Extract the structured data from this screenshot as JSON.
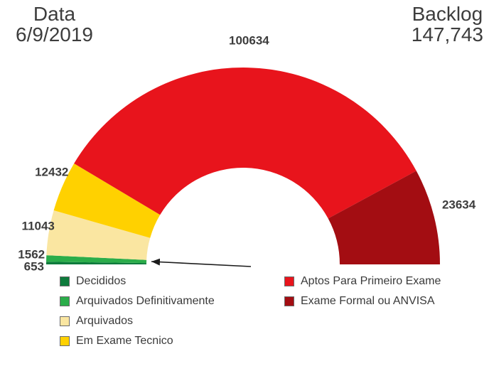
{
  "header": {
    "date_label": "Data",
    "date_value": "6/9/2019",
    "backlog_label": "Backlog",
    "backlog_value": "147,743"
  },
  "chart_data": {
    "type": "pie",
    "subtype": "half-donut-gauge",
    "title": "",
    "displayed_total": "147,743",
    "start_angle_deg": 180,
    "end_angle_deg": 0,
    "legend_position": "bottom-two-columns",
    "legend_column_counts": [
      4,
      2
    ],
    "segments": [
      {
        "label": "Decididos",
        "value": 653,
        "color": "#0E7B3C"
      },
      {
        "label": "Arquivados Definitivamente",
        "value": 1562,
        "color": "#2BAD4A"
      },
      {
        "label": "Arquivados",
        "value": 11043,
        "color": "#FAE6A1"
      },
      {
        "label": "Em Exame Tecnico",
        "value": 12432,
        "color": "#FFD100"
      },
      {
        "label": "Aptos Para Primeiro Exame",
        "value": 100634,
        "color": "#E8141C"
      },
      {
        "label": "Exame Formal ou ANVISA",
        "value": 23634,
        "color": "#A30D12"
      }
    ]
  }
}
